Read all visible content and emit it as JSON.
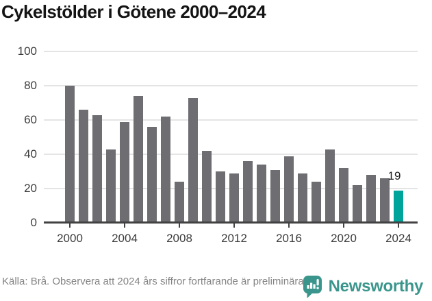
{
  "page": {
    "title": "Cykelstölder i Götene 2000–2024"
  },
  "chart_data": {
    "type": "bar",
    "title": "Cykelstölder i Götene 2000–2024",
    "categories": [
      "2000",
      "2001",
      "2002",
      "2003",
      "2004",
      "2005",
      "2006",
      "2007",
      "2008",
      "2009",
      "2010",
      "2011",
      "2012",
      "2013",
      "2014",
      "2015",
      "2016",
      "2017",
      "2018",
      "2019",
      "2020",
      "2021",
      "2022",
      "2023",
      "2024"
    ],
    "values": [
      80,
      66,
      63,
      43,
      59,
      74,
      56,
      62,
      24,
      73,
      42,
      30,
      29,
      36,
      34,
      31,
      39,
      29,
      24,
      43,
      32,
      22,
      28,
      26,
      19
    ],
    "ylim": [
      0,
      100
    ],
    "yticks": [
      0,
      20,
      40,
      60,
      80,
      100
    ],
    "xtick_labels": [
      "2000",
      "2004",
      "2008",
      "2012",
      "2016",
      "2020",
      "2024"
    ],
    "grid": true,
    "legend_position": "none",
    "bar_color": "#6d6d72",
    "grid_color": "#e4e4e4",
    "axis_color": "#424242",
    "highlight": {
      "index": 24,
      "category": "2024",
      "value": 19,
      "label": "19",
      "color": "#00a49a"
    }
  },
  "footer": {
    "source": "Källa: Brå. Observera att 2024 års siffror fortfarande är preliminära."
  },
  "branding": {
    "wordmark": "Newsworthy",
    "color": "#3a968c"
  }
}
